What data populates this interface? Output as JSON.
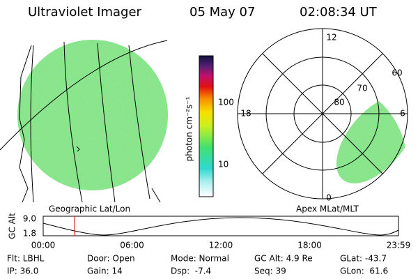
{
  "header": {
    "instrument": "Ultraviolet Imager",
    "date": "05 May 07",
    "time": "02:08:34 UT"
  },
  "colorbar": {
    "label": "photon cm⁻²s⁻¹",
    "ticks": [
      "100",
      "10"
    ]
  },
  "geographic_panel": {
    "label": "Geographic Lat/Lon"
  },
  "polar_panel": {
    "label": "Apex MLat/MLT",
    "mlt_labels": [
      "12",
      "18",
      "6",
      "0"
    ],
    "lat_labels": [
      "60",
      "70",
      "80"
    ]
  },
  "timeline": {
    "axis_label": "GC Alt",
    "y_labels": [
      "9.0",
      "1.8"
    ],
    "x_labels": [
      "00:00",
      "06:00",
      "12:00",
      "18:00",
      "23:59"
    ]
  },
  "footer": {
    "rows": [
      [
        "Flt: LBHL",
        "Door: Open",
        "Mode: Normal",
        "GC Alt: 4.9 Re",
        "GLat: -43.7"
      ],
      [
        "IP: 36.0",
        "Gain: 14",
        "Dsp:  -7.4",
        "Seq: 39",
        "GLon:  61.6"
      ]
    ]
  }
}
